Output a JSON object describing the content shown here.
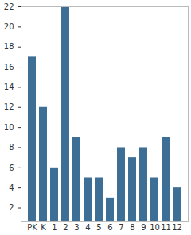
{
  "chart_data": {
    "type": "bar",
    "categories": [
      "PK",
      "K",
      "1",
      "2",
      "3",
      "4",
      "5",
      "6",
      "7",
      "8",
      "9",
      "10",
      "11",
      "12"
    ],
    "values": [
      17,
      12,
      6,
      22,
      9,
      5,
      5,
      3,
      8,
      7,
      8,
      5,
      9,
      4
    ],
    "color": "#3d6f96",
    "ylim": [
      0.7,
      22
    ],
    "yticks": [
      2,
      4,
      6,
      8,
      10,
      12,
      14,
      16,
      18,
      20,
      22
    ],
    "grid": false
  }
}
